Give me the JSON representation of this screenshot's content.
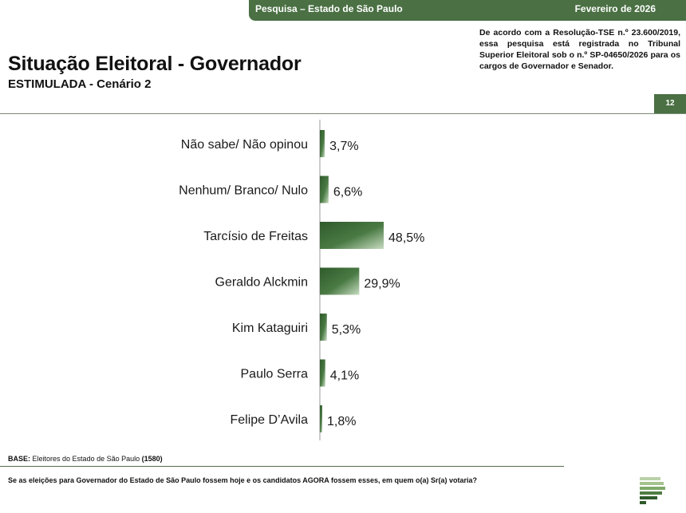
{
  "header": {
    "survey_label": "Pesquisa – Estado de São Paulo",
    "date_label": "Fevereiro de 2026"
  },
  "legal_note": "De acordo com a Resolução-TSE n.º 23.600/2019, essa pesquisa está registrada no Tribunal Superior Eleitoral sob o n.º SP-04650/2026 para os cargos de Governador e Senador.",
  "page_title": "Situação Eleitoral - Governador",
  "page_subtitle": "ESTIMULADA - Cenário 2",
  "page_number": "12",
  "base_label": "BASE:",
  "base_text": "Eleitores do Estado de São Paulo",
  "base_count": "(1580)",
  "question": "Se as eleições para Governador do Estado de São Paulo fossem hoje e os candidatos AGORA fossem esses, em quem o(a) Sr(a) votaria?",
  "colors": {
    "brand_green": "#4a7043",
    "bar_dark": "#3f6a3a",
    "bar_light": "#b9d1b3"
  },
  "chart_data": {
    "type": "bar",
    "orientation": "horizontal",
    "title": "",
    "xlabel": "",
    "ylabel": "",
    "categories": [
      "Não sabe/ Não opinou",
      "Nenhum/ Branco/ Nulo",
      "Tarcísio de Freitas",
      "Geraldo Alckmin",
      "Kim Kataguiri",
      "Paulo Serra",
      "Felipe D’Avila"
    ],
    "values": [
      3.7,
      6.6,
      48.5,
      29.9,
      5.3,
      4.1,
      1.8
    ],
    "value_labels": [
      "3,7%",
      "6,6%",
      "48,5%",
      "29,9%",
      "5,3%",
      "4,1%",
      "1,8%"
    ],
    "xlim": [
      0,
      100
    ],
    "grid": false,
    "legend": "none"
  }
}
